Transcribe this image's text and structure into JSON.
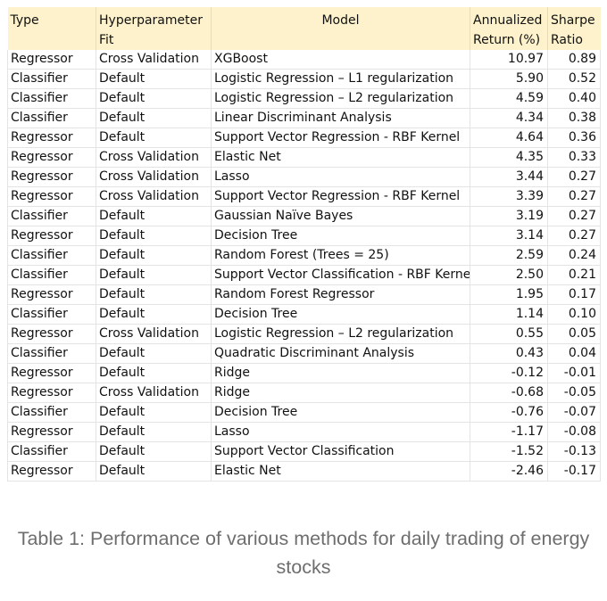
{
  "table": {
    "headers": {
      "type": "Type",
      "hyperparameter": "Hyperparameter Fit",
      "model": "Model",
      "annualized_return": "Annualized Return (%)",
      "sharpe_ratio": "Sharpe Ratio"
    },
    "rows": [
      {
        "type": "Regressor",
        "fit": "Cross Validation",
        "model": "XGBoost",
        "ret": "10.97",
        "sharpe": "0.89"
      },
      {
        "type": "Classifier",
        "fit": "Default",
        "model": "Logistic Regression – L1 regularization",
        "ret": "5.90",
        "sharpe": "0.52"
      },
      {
        "type": "Classifier",
        "fit": "Default",
        "model": "Logistic Regression – L2 regularization",
        "ret": "4.59",
        "sharpe": "0.40"
      },
      {
        "type": "Classifier",
        "fit": "Default",
        "model": "Linear Discriminant Analysis",
        "ret": "4.34",
        "sharpe": "0.38"
      },
      {
        "type": "Regressor",
        "fit": "Default",
        "model": "Support Vector Regression - RBF Kernel",
        "ret": "4.64",
        "sharpe": "0.36"
      },
      {
        "type": "Regressor",
        "fit": "Cross Validation",
        "model": "Elastic Net",
        "ret": "4.35",
        "sharpe": "0.33"
      },
      {
        "type": "Regressor",
        "fit": "Cross Validation",
        "model": "Lasso",
        "ret": "3.44",
        "sharpe": "0.27"
      },
      {
        "type": "Regressor",
        "fit": "Cross Validation",
        "model": "Support Vector Regression - RBF Kernel",
        "ret": "3.39",
        "sharpe": "0.27"
      },
      {
        "type": "Classifier",
        "fit": "Default",
        "model": "Gaussian Naïve Bayes",
        "ret": "3.19",
        "sharpe": "0.27"
      },
      {
        "type": "Regressor",
        "fit": "Default",
        "model": "Decision Tree",
        "ret": "3.14",
        "sharpe": "0.27"
      },
      {
        "type": "Classifier",
        "fit": "Default",
        "model": "Random Forest (Trees = 25)",
        "ret": "2.59",
        "sharpe": "0.24"
      },
      {
        "type": "Classifier",
        "fit": "Default",
        "model": "Support Vector Classification - RBF Kernel",
        "ret": "2.50",
        "sharpe": "0.21"
      },
      {
        "type": "Regressor",
        "fit": "Default",
        "model": "Random Forest Regressor",
        "ret": "1.95",
        "sharpe": "0.17"
      },
      {
        "type": "Classifier",
        "fit": "Default",
        "model": "Decision Tree",
        "ret": "1.14",
        "sharpe": "0.10"
      },
      {
        "type": "Regressor",
        "fit": "Cross Validation",
        "model": "Logistic Regression – L2 regularization",
        "ret": "0.55",
        "sharpe": "0.05"
      },
      {
        "type": "Classifier",
        "fit": "Default",
        "model": "Quadratic Discriminant Analysis",
        "ret": "0.43",
        "sharpe": "0.04"
      },
      {
        "type": "Regressor",
        "fit": "Default",
        "model": "Ridge",
        "ret": "-0.12",
        "sharpe": "-0.01"
      },
      {
        "type": "Regressor",
        "fit": "Cross Validation",
        "model": "Ridge",
        "ret": "-0.68",
        "sharpe": "-0.05"
      },
      {
        "type": "Classifier",
        "fit": "Default",
        "model": "Decision Tree",
        "ret": "-0.76",
        "sharpe": "-0.07"
      },
      {
        "type": "Regressor",
        "fit": "Default",
        "model": "Lasso",
        "ret": "-1.17",
        "sharpe": "-0.08"
      },
      {
        "type": "Classifier",
        "fit": "Default",
        "model": "Support Vector Classification",
        "ret": "-1.52",
        "sharpe": "-0.13"
      },
      {
        "type": "Regressor",
        "fit": "Default",
        "model": "Elastic Net",
        "ret": "-2.46",
        "sharpe": "-0.17"
      }
    ]
  },
  "caption": "Table 1: Performance of various methods for daily trading of energy stocks",
  "colors": {
    "header_background": "#fdf2cb",
    "caption_text": "#6e6e6e"
  }
}
